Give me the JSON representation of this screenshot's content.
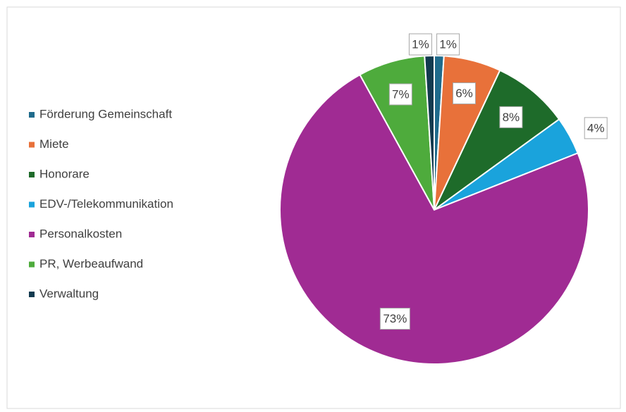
{
  "chart_data": {
    "type": "pie",
    "categories": [
      "Förderung Gemeinschaft",
      "Miete",
      "Honorare",
      "EDV-/Telekommunikation",
      "Personalkosten",
      "PR, Werbeaufwand",
      "Verwaltung"
    ],
    "values": [
      1,
      6,
      8,
      4,
      73,
      7,
      1
    ],
    "value_labels": [
      "1%",
      "6%",
      "8%",
      "4%",
      "73%",
      "7%",
      "1%"
    ],
    "colors": [
      "#1f6b8c",
      "#e8713a",
      "#1e6b2a",
      "#1aa3dc",
      "#a02b93",
      "#4eab3c",
      "#123a4f"
    ],
    "legend": "left"
  }
}
